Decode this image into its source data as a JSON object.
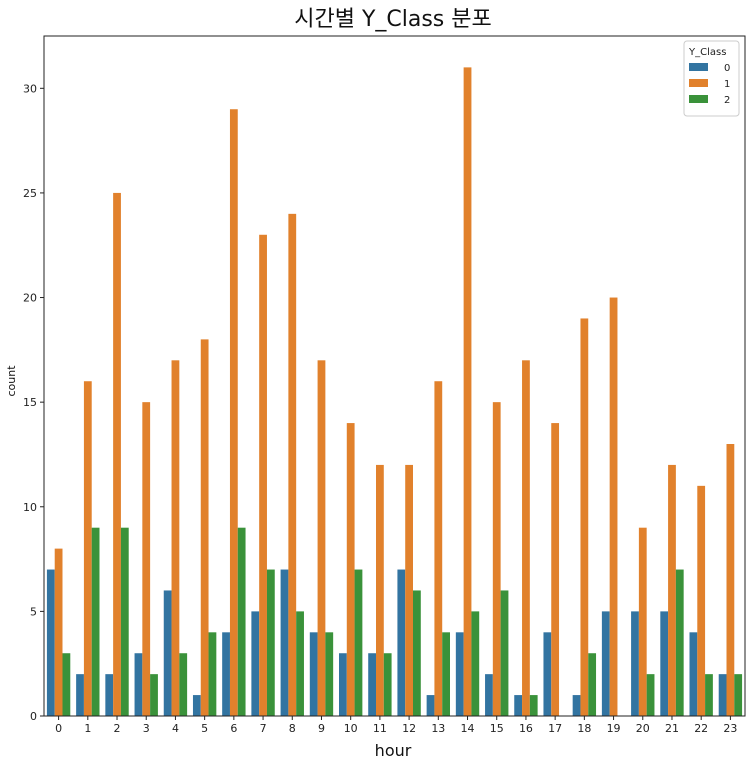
{
  "chart_data": {
    "type": "bar",
    "title": "시간별 Y_Class 분포",
    "xlabel": "hour",
    "ylabel": "count",
    "categories": [
      "0",
      "1",
      "2",
      "3",
      "4",
      "5",
      "6",
      "7",
      "8",
      "9",
      "10",
      "11",
      "12",
      "13",
      "14",
      "15",
      "16",
      "17",
      "18",
      "19",
      "20",
      "21",
      "22",
      "23"
    ],
    "ylim": [
      0,
      32.5
    ],
    "yticks": [
      0,
      5,
      10,
      15,
      20,
      25,
      30
    ],
    "grid": false,
    "legend": {
      "title": "Y_Class",
      "placement": "top-right"
    },
    "series": [
      {
        "name": "0",
        "color": "#3274a1",
        "values": [
          7,
          2,
          2,
          3,
          6,
          1,
          4,
          5,
          7,
          4,
          3,
          3,
          7,
          1,
          4,
          2,
          1,
          4,
          1,
          5,
          5,
          5,
          4,
          2
        ]
      },
      {
        "name": "1",
        "color": "#e1812c",
        "values": [
          8,
          16,
          25,
          15,
          17,
          18,
          29,
          23,
          24,
          17,
          14,
          12,
          12,
          16,
          31,
          15,
          17,
          14,
          19,
          20,
          9,
          12,
          11,
          13
        ]
      },
      {
        "name": "2",
        "color": "#3a923a",
        "values": [
          3,
          9,
          9,
          2,
          3,
          4,
          9,
          7,
          5,
          4,
          7,
          3,
          6,
          4,
          5,
          6,
          1,
          0,
          3,
          0,
          2,
          7,
          2,
          2
        ]
      }
    ]
  }
}
